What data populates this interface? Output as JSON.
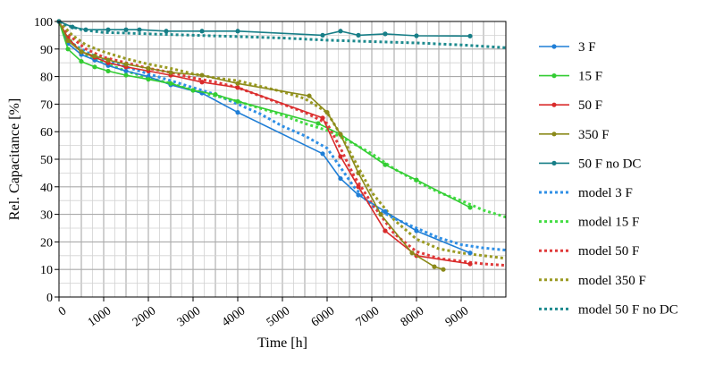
{
  "chart_data": {
    "type": "line",
    "title": "",
    "xlabel": "Time [h]",
    "ylabel": "Rel. Capacitance [%]",
    "xlim": [
      0,
      10000
    ],
    "ylim": [
      0,
      100
    ],
    "x_ticks": [
      0,
      1000,
      2000,
      3000,
      4000,
      5000,
      6000,
      7000,
      8000,
      9000
    ],
    "y_ticks": [
      0,
      10,
      20,
      30,
      40,
      50,
      60,
      70,
      80,
      90,
      100
    ],
    "x_tick_labels": [
      "0",
      "1000",
      "2000",
      "3000",
      "4000",
      "5000",
      "6000",
      "7000",
      "8000",
      "9000"
    ],
    "y_tick_labels": [
      "0",
      "10",
      "20",
      "30",
      "40",
      "50",
      "60",
      "70",
      "80",
      "90",
      "100"
    ],
    "grid": true,
    "legend_position": "right",
    "series": [
      {
        "name": "3 F",
        "color": "#1f7ed6",
        "style": "solid",
        "marker": true,
        "x": [
          0,
          200,
          500,
          800,
          1100,
          1500,
          2000,
          2500,
          3200,
          4000,
          5900,
          6300,
          6700,
          7300,
          8000,
          9200
        ],
        "y": [
          100,
          92,
          88,
          86,
          84,
          82,
          80,
          77,
          74,
          67,
          52,
          43,
          37,
          31,
          24,
          16
        ]
      },
      {
        "name": "15 F",
        "color": "#33cc33",
        "style": "solid",
        "marker": true,
        "x": [
          0,
          200,
          500,
          800,
          1100,
          1500,
          2000,
          2500,
          3000,
          3500,
          4000,
          5800,
          6300,
          7300,
          8000,
          9200
        ],
        "y": [
          100,
          90,
          85.5,
          83.5,
          82,
          80.5,
          79,
          77.5,
          75,
          73.5,
          71,
          63,
          59,
          48,
          42.5,
          32.5
        ]
      },
      {
        "name": "50 F",
        "color": "#d92b2b",
        "style": "solid",
        "marker": true,
        "x": [
          0,
          200,
          500,
          800,
          1100,
          1500,
          2000,
          2500,
          3200,
          4000,
          5900,
          6300,
          6700,
          7300,
          8000,
          9200
        ],
        "y": [
          100,
          94,
          89,
          87,
          85,
          83.5,
          82,
          80.5,
          78,
          76,
          65,
          51,
          40,
          24,
          15,
          12
        ]
      },
      {
        "name": "350 F",
        "color": "#8b8a1a",
        "style": "solid",
        "marker": true,
        "x": [
          0,
          200,
          500,
          800,
          1100,
          1500,
          2000,
          2500,
          3200,
          4000,
          5600,
          6000,
          6300,
          6700,
          7200,
          7900,
          8400,
          8600
        ],
        "y": [
          100,
          93,
          89,
          87.5,
          86,
          84.5,
          83,
          81.5,
          80.5,
          77.5,
          73,
          67,
          59,
          45,
          30,
          16,
          11,
          10
        ]
      },
      {
        "name": "50 F no DC",
        "color": "#177e87",
        "style": "solid",
        "marker": true,
        "x": [
          0,
          300,
          600,
          1100,
          1500,
          1800,
          2400,
          3200,
          4000,
          5900,
          6300,
          6700,
          7300,
          8000,
          9200
        ],
        "y": [
          100,
          98,
          97,
          97,
          97,
          97,
          96.5,
          96.5,
          96.5,
          95,
          96.5,
          95,
          95.5,
          94.8,
          94.7
        ]
      },
      {
        "name": "model 3 F",
        "color": "#2f8fe6",
        "style": "dotted",
        "marker": false,
        "x": [
          0,
          300,
          600,
          1000,
          1500,
          2000,
          2500,
          3000,
          3500,
          4000,
          4500,
          5000,
          5500,
          6000,
          6300,
          6600,
          7000,
          7500,
          8000,
          8500,
          9000,
          9500,
          10000
        ],
        "y": [
          100,
          92,
          89,
          86,
          83.5,
          81,
          78.5,
          76,
          73.5,
          70,
          66.5,
          62,
          58.5,
          54,
          47,
          40,
          33,
          28.5,
          25,
          21.5,
          19,
          17.8,
          17
        ]
      },
      {
        "name": "model 15 F",
        "color": "#44dd44",
        "style": "dotted",
        "marker": false,
        "x": [
          0,
          300,
          600,
          1000,
          1500,
          2000,
          2500,
          3000,
          3500,
          4000,
          4500,
          5000,
          5500,
          6000,
          6500,
          7000,
          7500,
          8000,
          8500,
          9000,
          9500,
          10000
        ],
        "y": [
          100,
          92,
          88,
          85,
          82,
          79.5,
          77.5,
          75,
          73,
          71,
          68.5,
          66,
          63,
          60.5,
          56.5,
          52,
          46.5,
          42,
          38,
          35,
          31.5,
          29
        ]
      },
      {
        "name": "model 50 F",
        "color": "#e03a3a",
        "style": "dotted",
        "marker": false,
        "x": [
          0,
          300,
          600,
          1000,
          1500,
          2000,
          2500,
          3000,
          3500,
          4000,
          4500,
          5000,
          5500,
          6000,
          6300,
          6600,
          7000,
          7500,
          8000,
          8500,
          9000,
          9500,
          10000
        ],
        "y": [
          100,
          94,
          90,
          87,
          85,
          83,
          81.5,
          79.5,
          78,
          76,
          73,
          70,
          67,
          63,
          54,
          44,
          34,
          23,
          16.5,
          14,
          13,
          12,
          11.5
        ]
      },
      {
        "name": "model 350 F",
        "color": "#9a9a22",
        "style": "dotted",
        "marker": false,
        "x": [
          0,
          300,
          600,
          1000,
          1500,
          2000,
          2500,
          3000,
          3500,
          4000,
          4500,
          5000,
          5500,
          6000,
          6300,
          6600,
          7000,
          7500,
          8000,
          8500,
          9000,
          9500,
          10000
        ],
        "y": [
          100,
          95,
          91.5,
          89,
          86.5,
          84.5,
          83,
          81,
          79.5,
          78.5,
          76.5,
          74.5,
          72,
          67,
          59,
          50,
          38,
          28,
          21,
          17.5,
          16,
          15,
          14
        ]
      },
      {
        "name": "model 50 F no DC",
        "color": "#1d8a8e",
        "style": "dotted",
        "marker": false,
        "x": [
          0,
          500,
          1000,
          1500,
          2000,
          3000,
          4000,
          5000,
          6000,
          7000,
          8000,
          9000,
          10000
        ],
        "y": [
          99.5,
          97,
          96,
          95.8,
          95.5,
          95,
          94.5,
          94,
          93.2,
          92.7,
          92.2,
          91.5,
          90.5
        ]
      }
    ]
  }
}
